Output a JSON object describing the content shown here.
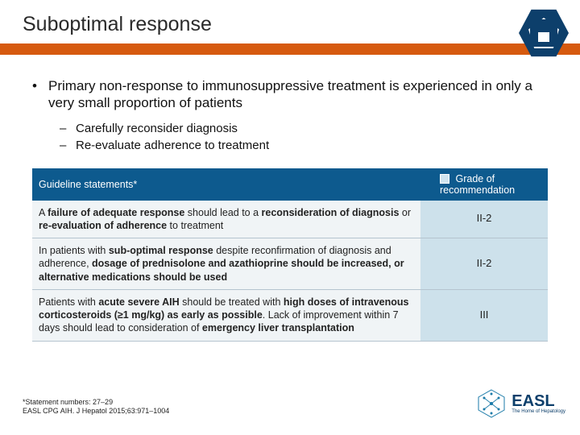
{
  "title": "Suboptimal response",
  "colors": {
    "title_bar": "#d65a0f",
    "header_blue": "#0d5a8e",
    "grade_bg": "#cde1eb",
    "row_bg": "#f0f4f6",
    "badge_blue": "#0d3f6b"
  },
  "main_bullet": "Primary non-response to immunosuppressive treatment is experienced in only a very small proportion of patients",
  "sub_bullets": [
    "Carefully reconsider diagnosis",
    "Re-evaluate adherence to treatment"
  ],
  "table": {
    "header_left": "Guideline statements*",
    "header_right": "Grade of recommendation",
    "rows": [
      {
        "html": "A <b>failure of adequate response</b> should lead to a <b>reconsideration of diagnosis</b> or <b>re-evaluation of adherence</b> to treatment",
        "grade": "II-2"
      },
      {
        "html": "In patients with <b>sub-optimal response</b> despite reconfirmation of diagnosis and adherence, <b>dosage of prednisolone and azathioprine should be increased, or alternative medications should be used</b>",
        "grade": "II-2"
      },
      {
        "html": "Patients with <b>acute severe AIH</b> should be treated with <b>high doses of intravenous corticosteroids (≥1 mg/kg) as early as possible</b>. Lack of improvement within 7 days should lead to consideration of <b>emergency liver transplantation</b>",
        "grade": "III"
      }
    ]
  },
  "footnote_line1": "*Statement numbers: 27–29",
  "footnote_line2": "EASL CPG AIH. J Hepatol 2015;63:971–1004",
  "logo": {
    "text": "EASL",
    "subtitle": "The Home of Hepatology"
  }
}
